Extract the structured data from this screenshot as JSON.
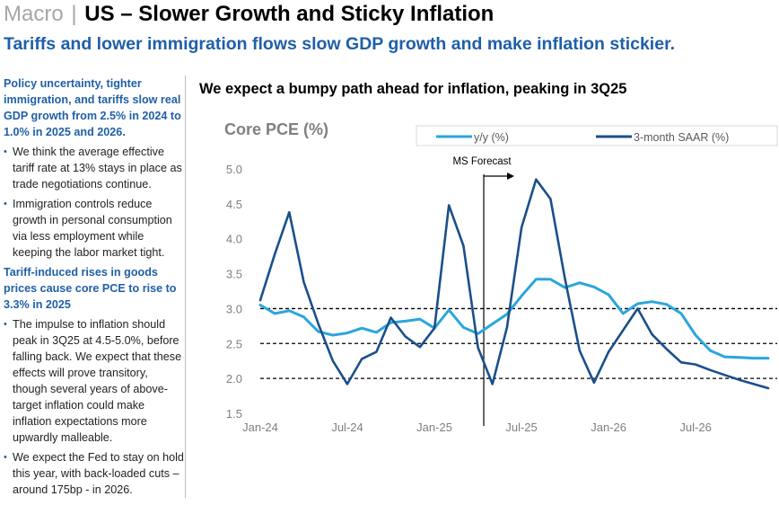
{
  "header": {
    "prefix": "Macro",
    "separator": "|",
    "title": "US – Slower Growth and Sticky Inflation",
    "subtitle": "Tariffs and lower immigration flows slow GDP growth and make inflation stickier."
  },
  "sidebar": {
    "sections": [
      {
        "heading": "Policy uncertainty, tighter immigration, and tariffs slow real GDP growth from 2.5% in 2024 to 1.0% in 2025 and 2026.",
        "bullets": [
          "We think the average effective tariff rate at 13% stays in place as trade negotiations continue.",
          "Immigration controls reduce growth in personal consumption via less employment while keeping the labor market tight."
        ]
      },
      {
        "heading": "Tariff-induced rises in goods prices cause core PCE to rise to 3.3% in 2025",
        "bullets": [
          "The impulse to inflation should peak in 3Q25 at 4.5-5.0%, before falling back. We expect that these effects will prove transitory, though several years of above-target inflation could make inflation expectations more upwardly malleable.",
          "We expect the Fed to stay on hold this year, with back-loaded cuts – around 175bp - in 2026."
        ]
      }
    ],
    "bullet_glyph": "•"
  },
  "chart_title": "We expect a bumpy path ahead for inflation, peaking in 3Q25",
  "chart_data": {
    "type": "line",
    "title": "Core PCE (%)",
    "x": [
      "Jan-24",
      "Feb-24",
      "Mar-24",
      "Apr-24",
      "May-24",
      "Jun-24",
      "Jul-24",
      "Aug-24",
      "Sep-24",
      "Oct-24",
      "Nov-24",
      "Dec-24",
      "Jan-25",
      "Feb-25",
      "Mar-25",
      "Apr-25",
      "May-25",
      "Jun-25",
      "Jul-25",
      "Aug-25",
      "Sep-25",
      "Oct-25",
      "Nov-25",
      "Dec-25",
      "Jan-26",
      "Feb-26",
      "Mar-26",
      "Apr-26",
      "May-26",
      "Jun-26",
      "Jul-26",
      "Aug-26",
      "Sep-26",
      "Oct-26",
      "Nov-26",
      "Dec-26"
    ],
    "x_tick_labels": [
      "Jan-24",
      "Jul-24",
      "Jan-25",
      "Jul-25",
      "Jan-26",
      "Jul-26"
    ],
    "ylim": [
      1.5,
      5.0
    ],
    "yticks": [
      "1.5",
      "2.0",
      "2.5",
      "3.0",
      "3.5",
      "4.0",
      "4.5",
      "5.0"
    ],
    "reference_lines": [
      2.0,
      2.5,
      3.0
    ],
    "forecast_marker": {
      "label": "MS Forecast",
      "x": "Apr-25"
    },
    "legend": "top-right",
    "series": [
      {
        "name": "y/y (%)",
        "color": "#2aa6dc",
        "values": [
          3.05,
          2.93,
          2.97,
          2.88,
          2.67,
          2.62,
          2.65,
          2.72,
          2.66,
          2.8,
          2.82,
          2.85,
          2.72,
          2.98,
          2.73,
          2.64,
          2.78,
          2.92,
          3.18,
          3.42,
          3.42,
          3.3,
          3.37,
          3.31,
          3.2,
          2.93,
          3.07,
          3.1,
          3.06,
          2.93,
          2.62,
          2.4,
          2.31,
          2.3,
          2.29,
          2.29
        ]
      },
      {
        "name": "3-month SAAR (%)",
        "color": "#1a4f8b",
        "values": [
          3.12,
          3.78,
          4.38,
          3.38,
          2.78,
          2.25,
          1.92,
          2.28,
          2.38,
          2.87,
          2.6,
          2.45,
          2.72,
          4.48,
          3.9,
          2.44,
          1.92,
          2.73,
          4.16,
          4.85,
          4.57,
          3.42,
          2.4,
          1.94,
          2.38,
          2.69,
          3.0,
          2.63,
          2.42,
          2.23,
          2.2,
          2.12,
          2.05,
          1.98,
          1.92,
          1.86
        ]
      }
    ]
  }
}
